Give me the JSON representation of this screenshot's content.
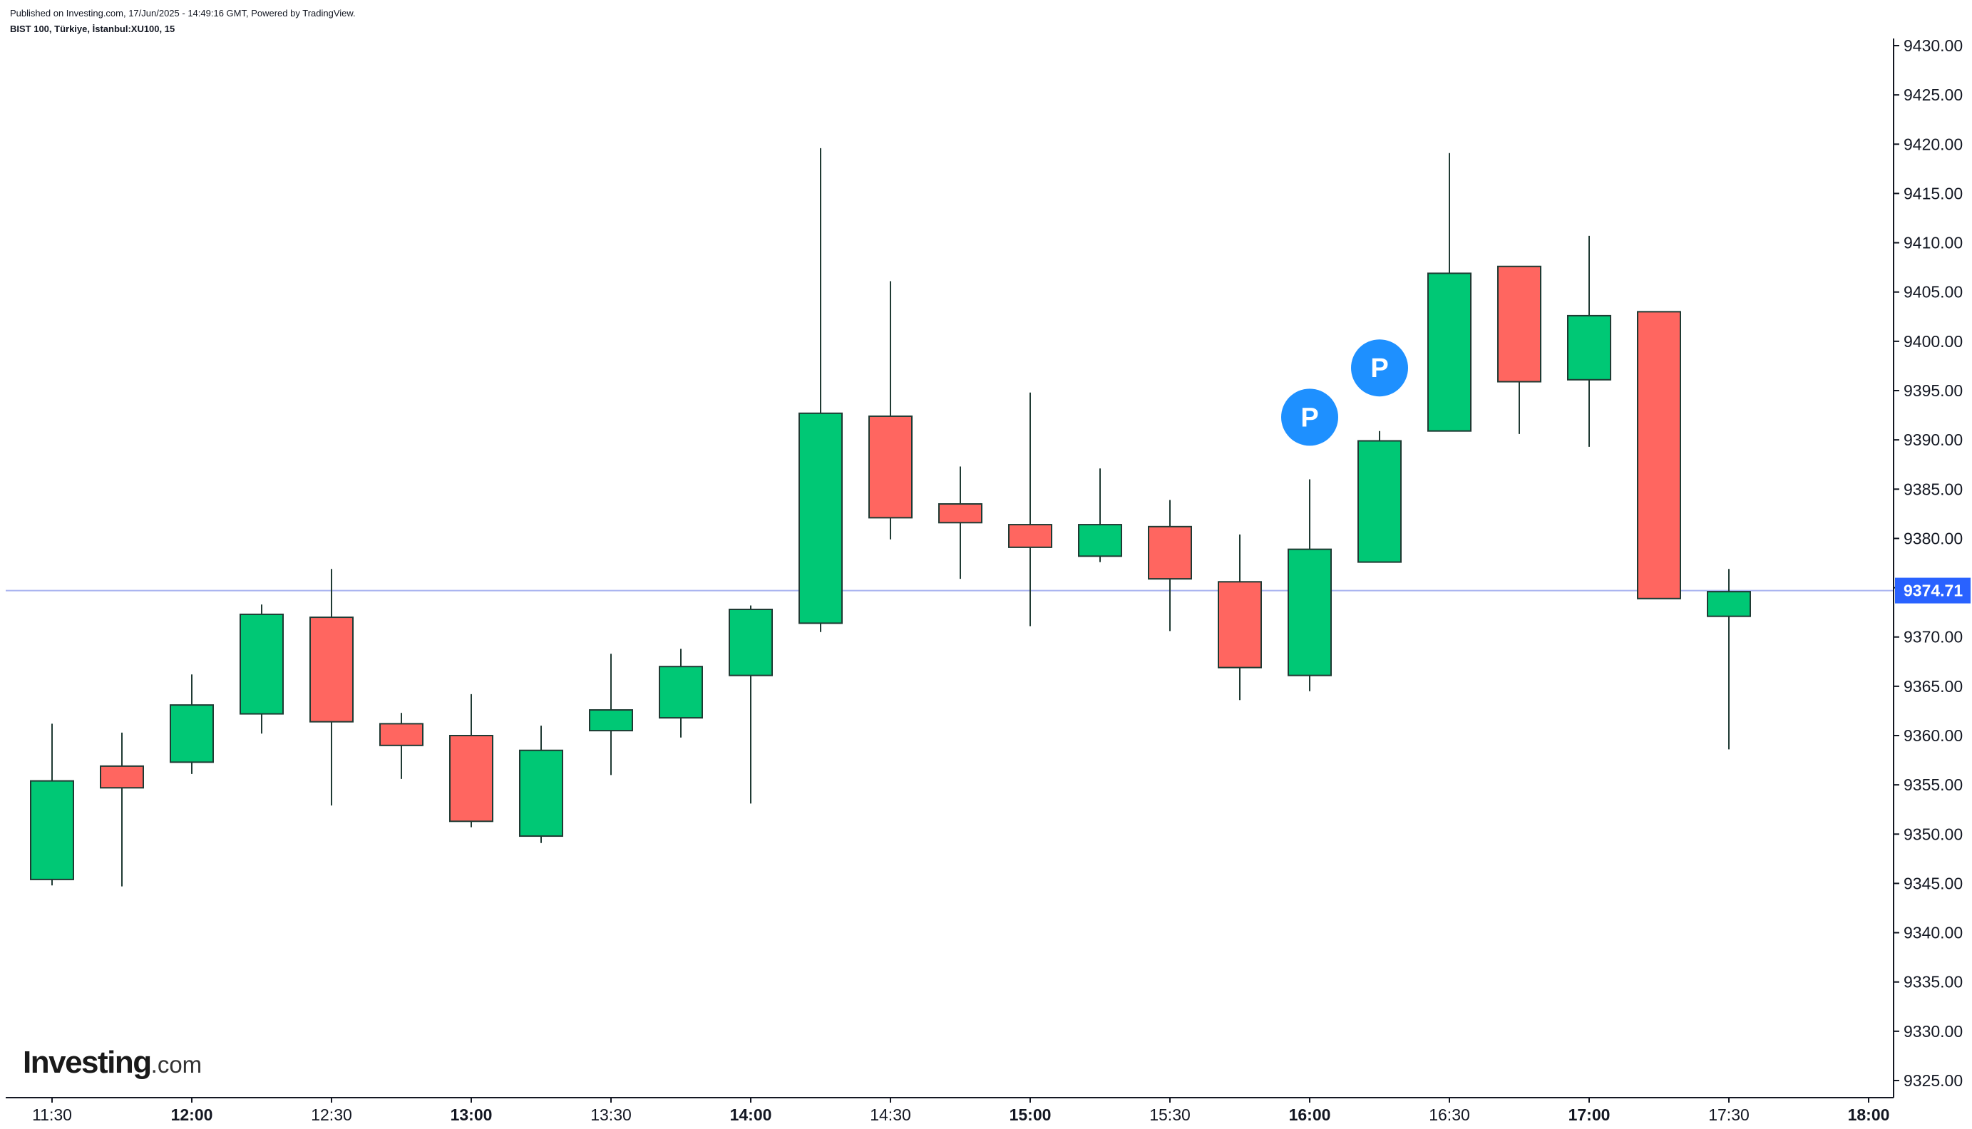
{
  "header": {
    "published": "Published on Investing.com, 17/Jun/2025 - 14:49:16 GMT, Powered by TradingView.",
    "symbol": "BIST 100, Türkiye, İstanbul:XU100, 15"
  },
  "logo": {
    "wordmark": "Investing",
    "suffix": ".com"
  },
  "colors": {
    "up": "#00c875",
    "down": "#ff6660",
    "wick": "#1f3a33",
    "last_price_line": "#aab4f0",
    "last_price_badge": "#2962ff",
    "marker": "#1e90ff",
    "axis": "#131722"
  },
  "chart_data": {
    "type": "candlestick",
    "interval": "15",
    "y_axis": {
      "ticks": [
        "9325.00",
        "9330.00",
        "9335.00",
        "9340.00",
        "9345.00",
        "9350.00",
        "9355.00",
        "9360.00",
        "9365.00",
        "9370.00",
        "9375.00",
        "9380.00",
        "9385.00",
        "9390.00",
        "9395.00",
        "9400.00",
        "9405.00",
        "9410.00",
        "9415.00",
        "9420.00",
        "9425.00",
        "9430.00"
      ],
      "range": [
        9322.5,
        9430.5
      ],
      "position": "right"
    },
    "x_axis": {
      "labels": [
        {
          "text": "11:30",
          "time": "11:30",
          "bold": false
        },
        {
          "text": "12:00",
          "time": "12:00",
          "bold": true
        },
        {
          "text": "12:30",
          "time": "12:30",
          "bold": false
        },
        {
          "text": "13:00",
          "time": "13:00",
          "bold": true
        },
        {
          "text": "13:30",
          "time": "13:30",
          "bold": false
        },
        {
          "text": "14:00",
          "time": "14:00",
          "bold": true
        },
        {
          "text": "14:30",
          "time": "14:30",
          "bold": false
        },
        {
          "text": "15:00",
          "time": "15:00",
          "bold": true
        },
        {
          "text": "15:30",
          "time": "15:30",
          "bold": false
        },
        {
          "text": "16:00",
          "time": "16:00",
          "bold": true
        },
        {
          "text": "16:30",
          "time": "16:30",
          "bold": false
        },
        {
          "text": "17:00",
          "time": "17:00",
          "bold": true
        },
        {
          "text": "17:30",
          "time": "17:30",
          "bold": false
        },
        {
          "text": "18:00",
          "time": "18:00",
          "bold": true
        }
      ]
    },
    "last_price": {
      "value": 9374.71,
      "label": "9374.71"
    },
    "candles": [
      {
        "time": "11:30",
        "open": 9345.4,
        "high": 9361.2,
        "low": 9344.8,
        "close": 9355.4
      },
      {
        "time": "11:45",
        "open": 9356.9,
        "high": 9360.3,
        "low": 9344.7,
        "close": 9354.7
      },
      {
        "time": "12:00",
        "open": 9357.3,
        "high": 9366.2,
        "low": 9356.1,
        "close": 9363.1
      },
      {
        "time": "12:15",
        "open": 9362.2,
        "high": 9373.3,
        "low": 9360.2,
        "close": 9372.3
      },
      {
        "time": "12:30",
        "open": 9372.0,
        "high": 9376.9,
        "low": 9352.9,
        "close": 9361.4
      },
      {
        "time": "12:45",
        "open": 9361.2,
        "high": 9362.3,
        "low": 9355.6,
        "close": 9359.0
      },
      {
        "time": "13:00",
        "open": 9360.0,
        "high": 9364.2,
        "low": 9350.7,
        "close": 9351.3
      },
      {
        "time": "13:15",
        "open": 9349.8,
        "high": 9361.0,
        "low": 9349.1,
        "close": 9358.5
      },
      {
        "time": "13:30",
        "open": 9360.5,
        "high": 9368.3,
        "low": 9356.0,
        "close": 9362.6
      },
      {
        "time": "13:45",
        "open": 9361.8,
        "high": 9368.8,
        "low": 9359.8,
        "close": 9367.0
      },
      {
        "time": "14:00",
        "open": 9366.1,
        "high": 9373.2,
        "low": 9353.1,
        "close": 9372.8
      },
      {
        "time": "14:15",
        "open": 9371.4,
        "high": 9419.6,
        "low": 9370.5,
        "close": 9392.7
      },
      {
        "time": "14:30",
        "open": 9392.4,
        "high": 9406.1,
        "low": 9379.9,
        "close": 9382.1
      },
      {
        "time": "14:45",
        "open": 9383.5,
        "high": 9387.3,
        "low": 9375.9,
        "close": 9381.6
      },
      {
        "time": "15:00",
        "open": 9381.4,
        "high": 9394.8,
        "low": 9371.1,
        "close": 9379.1
      },
      {
        "time": "15:15",
        "open": 9378.2,
        "high": 9387.1,
        "low": 9377.6,
        "close": 9381.4
      },
      {
        "time": "15:30",
        "open": 9381.2,
        "high": 9383.9,
        "low": 9370.6,
        "close": 9375.9
      },
      {
        "time": "15:45",
        "open": 9375.6,
        "high": 9380.4,
        "low": 9363.6,
        "close": 9366.9
      },
      {
        "time": "16:00",
        "open": 9366.1,
        "high": 9386.0,
        "low": 9364.5,
        "close": 9378.9
      },
      {
        "time": "16:15",
        "open": 9377.6,
        "high": 9390.9,
        "low": 9377.6,
        "close": 9389.9
      },
      {
        "time": "16:30",
        "open": 9390.9,
        "high": 9419.1,
        "low": 9390.9,
        "close": 9406.9
      },
      {
        "time": "16:45",
        "open": 9407.6,
        "high": 9407.6,
        "low": 9390.6,
        "close": 9395.9
      },
      {
        "time": "17:00",
        "open": 9396.1,
        "high": 9410.7,
        "low": 9389.3,
        "close": 9402.6
      },
      {
        "time": "17:15",
        "open": 9403.0,
        "high": 9403.0,
        "low": 9373.9,
        "close": 9373.9
      },
      {
        "time": "17:30",
        "open": 9372.1,
        "high": 9376.9,
        "low": 9358.6,
        "close": 9374.6
      }
    ],
    "markers": [
      {
        "time": "16:00",
        "value": 9392.3,
        "label": "P"
      },
      {
        "time": "16:15",
        "value": 9397.3,
        "label": "P"
      }
    ],
    "grid": false,
    "legend": "none"
  }
}
